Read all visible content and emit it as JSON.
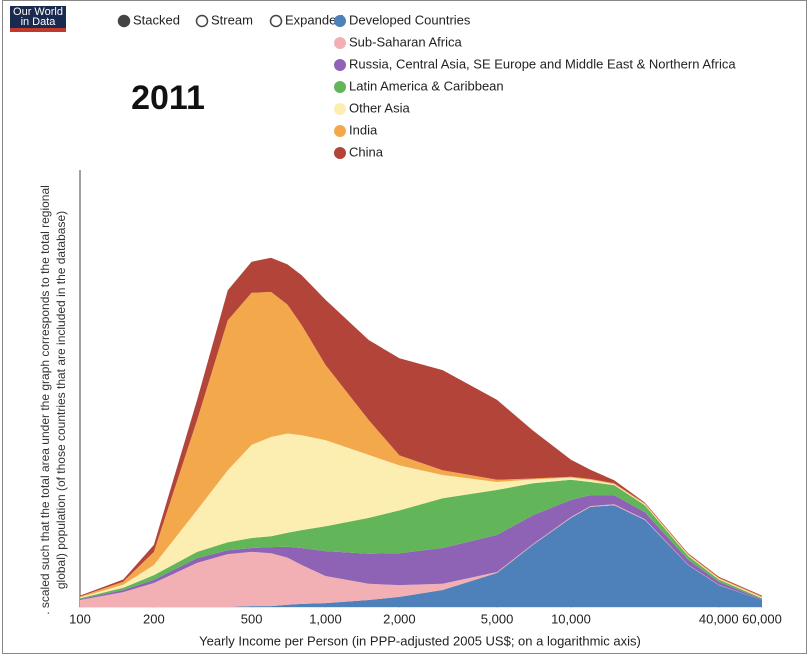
{
  "logo": [
    "Our World",
    "in Data"
  ],
  "controls": [
    "Stacked",
    "Stream",
    "Expanded"
  ],
  "chart_data": {
    "type": "area",
    "stacked": true,
    "title": "2011",
    "xlabel": "Yearly Income per Person (in PPP-adjusted 2005 US$; on a logarithmic axis)",
    "ylabel": [
      ". scaled such that the total area under the graph corresponds to the total regional",
      "global) population (of those countries that are included in the database)"
    ],
    "log_x": true,
    "xlim": [
      100,
      60000
    ],
    "ylim": [
      0,
      100
    ],
    "xticks": [
      100,
      200,
      500,
      {
        "value": 1000,
        "label": "1,000"
      },
      {
        "value": 2000,
        "label": "2,000"
      },
      {
        "value": 5000,
        "label": "5,000"
      },
      {
        "value": 10000,
        "label": "10,000"
      },
      {
        "value": 40000,
        "label": "40,000"
      },
      {
        "value": 60000,
        "label": "60,000"
      }
    ],
    "x": [
      100,
      150,
      200,
      300,
      400,
      500,
      600,
      700,
      800,
      1000,
      1500,
      2000,
      3000,
      5000,
      7000,
      10000,
      12000,
      15000,
      20000,
      30000,
      40000,
      60000
    ],
    "series": [
      {
        "name": "Developed Countries",
        "color": "#4e80b9",
        "values": [
          0,
          0,
          0,
          0,
          0,
          0.2,
          0.2,
          0.5,
          0.7,
          0.9,
          1.6,
          2.3,
          3.9,
          7.8,
          14.2,
          20.4,
          22.9,
          23.3,
          19.9,
          9.6,
          5.0,
          1.6
        ]
      },
      {
        "name": "Sub-Saharan Africa",
        "color": "#f2b0b5",
        "values": [
          1.6,
          3.4,
          5.5,
          10.1,
          12.1,
          12.4,
          12.1,
          10.8,
          8.9,
          6.2,
          3.7,
          2.7,
          1.4,
          0.2,
          0.2,
          0.2,
          0.2,
          0.2,
          0.2,
          0.1,
          0.1,
          0
        ]
      },
      {
        "name": "Russia, Central Asia, SE Europe and Middle East & Northern Africa",
        "color": "#8e63b5",
        "values": [
          0.2,
          0.5,
          0.7,
          1.1,
          0.9,
          0.9,
          1.4,
          2.5,
          3.9,
          5.7,
          6.9,
          7.3,
          8.2,
          8.5,
          6.6,
          3.9,
          2.5,
          2.1,
          1.6,
          1.1,
          0.7,
          0.2
        ]
      },
      {
        "name": "Latin America & Caribbean",
        "color": "#63b55a",
        "values": [
          0.2,
          0.5,
          1.1,
          1.4,
          1.8,
          2.3,
          2.5,
          3.2,
          4.1,
          5.7,
          8.2,
          9.8,
          11.4,
          10.3,
          7.3,
          4.6,
          3.0,
          2.3,
          1.6,
          0.9,
          0.5,
          0.2
        ]
      },
      {
        "name": "Other Asia",
        "color": "#fcedb0",
        "values": [
          0.2,
          0.7,
          2.3,
          9.6,
          16.5,
          21.3,
          22.7,
          22.7,
          21.7,
          19.7,
          14.4,
          10.3,
          5.3,
          1.8,
          0.9,
          0.5,
          0.5,
          0.2,
          0.2,
          0.2,
          0.2,
          0.2
        ]
      },
      {
        "name": "India",
        "color": "#f4a84c",
        "values": [
          0.2,
          0.7,
          3.0,
          20.6,
          34.3,
          34.8,
          33.2,
          29.5,
          25.2,
          17.2,
          8.0,
          2.3,
          1.1,
          0.5,
          0.2,
          0.2,
          0.2,
          0.2,
          0.2,
          0.2,
          0.2,
          0.2
        ]
      },
      {
        "name": "China",
        "color": "#b3443a",
        "values": [
          0.2,
          0.5,
          1.6,
          4.6,
          6.9,
          7.1,
          7.8,
          9.2,
          11.4,
          14.9,
          18.3,
          22.2,
          22.9,
          18.3,
          11.0,
          3.9,
          2.1,
          0.7,
          0.2,
          0.2,
          0.2,
          0.2
        ]
      }
    ]
  }
}
